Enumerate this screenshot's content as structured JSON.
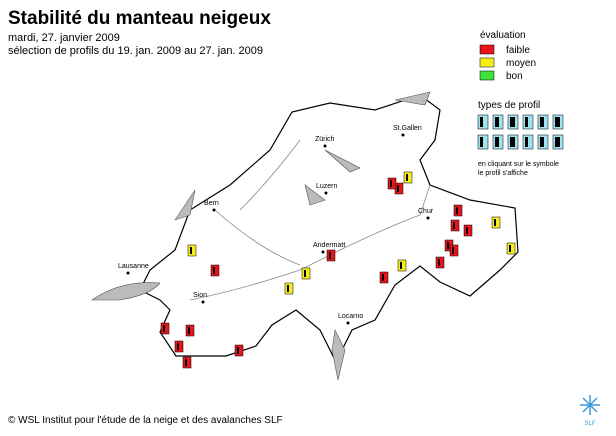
{
  "header": {
    "title": "Stabilité du manteau neigeux",
    "date": "mardi, 27. janvier 2009",
    "selection": "sélection de profils du 19. jan. 2009 au 27. jan. 2009"
  },
  "legend": {
    "title": "évaluation",
    "items": [
      {
        "label": "faible",
        "color": "#e8141c"
      },
      {
        "label": "moyen",
        "color": "#f5ee1a"
      },
      {
        "label": "bon",
        "color": "#3ee03a"
      }
    ],
    "profile_types_title": "types de profil",
    "note_lines": [
      "en cliquant sur le symbole",
      "le profil s'affiche"
    ]
  },
  "cities": [
    "Zürich",
    "St.Gallen",
    "Luzern",
    "Bern",
    "Chur",
    "Andermatt",
    "Lausanne",
    "Sion",
    "Locarno"
  ],
  "footer": "© WSL Institut pour l'étude de la neige et des avalanches SLF",
  "logo": "SLF"
}
